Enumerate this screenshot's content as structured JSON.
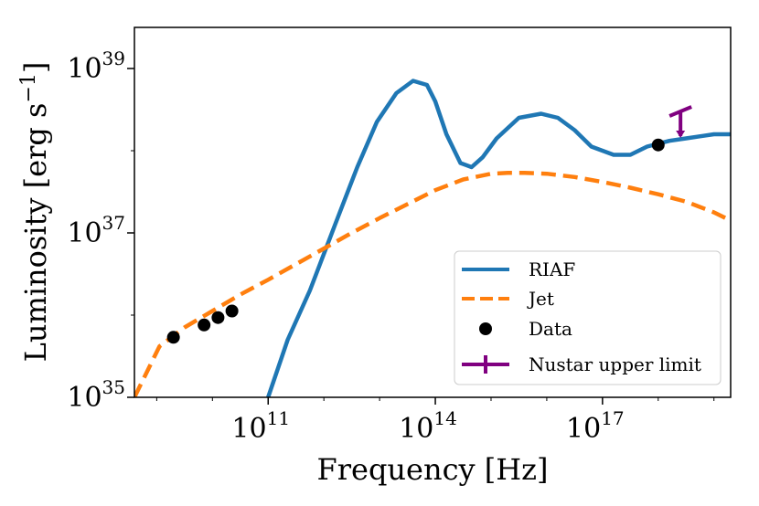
{
  "chart_data": {
    "type": "line",
    "xscale": "log",
    "yscale": "log",
    "xlabel": "Frequency [Hz]",
    "ylabel_main": "Luminosity [erg s",
    "ylabel_sup": "−1",
    "ylabel_close": "]",
    "xlim_log10": [
      8.6,
      19.3
    ],
    "ylim_log10": [
      35.0,
      39.5
    ],
    "xticks": [
      {
        "base": "10",
        "exp": "11",
        "log10": 11
      },
      {
        "base": "10",
        "exp": "14",
        "log10": 14
      },
      {
        "base": "10",
        "exp": "17",
        "log10": 17
      }
    ],
    "yticks": [
      {
        "base": "10",
        "exp": "35",
        "log10": 35
      },
      {
        "base": "10",
        "exp": "37",
        "log10": 37
      },
      {
        "base": "10",
        "exp": "39",
        "log10": 39
      }
    ],
    "colors": {
      "riaf": "#1f77b4",
      "jet": "#ff7f0e",
      "data": "#000000",
      "nustar": "#800080"
    },
    "series": [
      {
        "name": "RIAF",
        "style": "solid",
        "log10_x": [
          11.0,
          11.35,
          11.75,
          12.2,
          12.6,
          12.95,
          13.3,
          13.6,
          13.85,
          14.0,
          14.2,
          14.45,
          14.65,
          14.85,
          15.1,
          15.5,
          15.9,
          16.2,
          16.5,
          16.8,
          17.2,
          17.5,
          17.8,
          18.2,
          18.5,
          18.8,
          19.0,
          19.3
        ],
        "log10_y": [
          35.0,
          35.7,
          36.3,
          37.1,
          37.8,
          38.35,
          38.7,
          38.85,
          38.8,
          38.6,
          38.2,
          37.85,
          37.8,
          37.92,
          38.15,
          38.4,
          38.45,
          38.4,
          38.25,
          38.05,
          37.95,
          37.95,
          38.05,
          38.12,
          38.15,
          38.18,
          38.2,
          38.2
        ]
      },
      {
        "name": "Jet",
        "style": "dashed",
        "log10_x": [
          8.6,
          9.05,
          9.5,
          10.0,
          10.5,
          11.0,
          11.5,
          12.0,
          12.5,
          13.0,
          13.5,
          14.0,
          14.5,
          15.0,
          15.3,
          15.6,
          16.0,
          16.5,
          17.0,
          17.5,
          18.0,
          18.5,
          19.0,
          19.3
        ],
        "log10_y": [
          35.0,
          35.62,
          35.85,
          36.05,
          36.25,
          36.43,
          36.62,
          36.81,
          37.0,
          37.18,
          37.35,
          37.52,
          37.65,
          37.72,
          37.73,
          37.73,
          37.72,
          37.68,
          37.62,
          37.55,
          37.47,
          37.38,
          37.25,
          37.15
        ]
      },
      {
        "name": "Data",
        "style": "points",
        "log10_x": [
          9.3,
          9.85,
          10.1,
          10.35,
          18.0
        ],
        "log10_y": [
          35.73,
          35.88,
          35.97,
          36.05,
          38.07
        ]
      },
      {
        "name": "Nustar upper limit",
        "style": "upper-limit",
        "log10_x": [
          18.4
        ],
        "log10_y": [
          38.4
        ]
      }
    ],
    "legend": {
      "position": "lower-right",
      "entries": [
        "RIAF",
        "Jet",
        "Data",
        "Nustar upper limit"
      ]
    }
  }
}
